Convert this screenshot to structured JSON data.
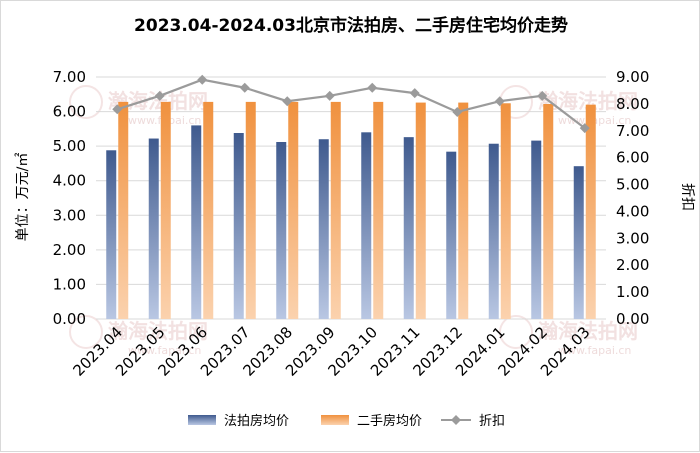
{
  "chart_data": {
    "type": "bar",
    "title": "2023.04-2024.03北京市法拍房、二手房住宅均价走势",
    "categories": [
      "2023.04",
      "2023.05",
      "2023.06",
      "2023.07",
      "2023.08",
      "2023.09",
      "2023.10",
      "2023.11",
      "2023.12",
      "2024.01",
      "2024.02",
      "2024.03"
    ],
    "series": [
      {
        "name": "法拍房均价",
        "type": "bar",
        "axis": "left",
        "color": "#4a5f8f",
        "values": [
          4.88,
          5.22,
          5.6,
          5.38,
          5.12,
          5.2,
          5.4,
          5.26,
          4.84,
          5.07,
          5.16,
          4.42
        ]
      },
      {
        "name": "二手房均价",
        "type": "bar",
        "axis": "left",
        "color": "#f39a4b",
        "values": [
          6.28,
          6.28,
          6.28,
          6.28,
          6.28,
          6.28,
          6.28,
          6.26,
          6.26,
          6.24,
          6.22,
          6.2
        ]
      },
      {
        "name": "折扣",
        "type": "line",
        "axis": "right",
        "color": "#9b9b9b",
        "values": [
          7.8,
          8.3,
          8.9,
          8.6,
          8.1,
          8.3,
          8.6,
          8.4,
          7.7,
          8.1,
          8.3,
          7.1
        ]
      }
    ],
    "ylabel": "单位：万元/㎡",
    "y2label": "折扣",
    "ylim": [
      0,
      7
    ],
    "y2lim": [
      0,
      9
    ],
    "yticks": [
      "0.00",
      "1.00",
      "2.00",
      "3.00",
      "4.00",
      "5.00",
      "6.00",
      "7.00"
    ],
    "y2ticks": [
      "0.00",
      "1.00",
      "2.00",
      "3.00",
      "4.00",
      "5.00",
      "6.00",
      "7.00",
      "8.00",
      "9.00"
    ],
    "grid": true,
    "legend_position": "bottom"
  },
  "watermarks": [
    {
      "text": "瀚海法拍网",
      "sub": "www.fapai.cn"
    },
    {
      "text": "瀚海法拍网",
      "sub": "www.fapai.cn"
    },
    {
      "text": "瀚海法拍网",
      "sub": "www.fapai.cn"
    },
    {
      "text": "瀚海法拍网",
      "sub": "www.fapai.cn"
    }
  ]
}
